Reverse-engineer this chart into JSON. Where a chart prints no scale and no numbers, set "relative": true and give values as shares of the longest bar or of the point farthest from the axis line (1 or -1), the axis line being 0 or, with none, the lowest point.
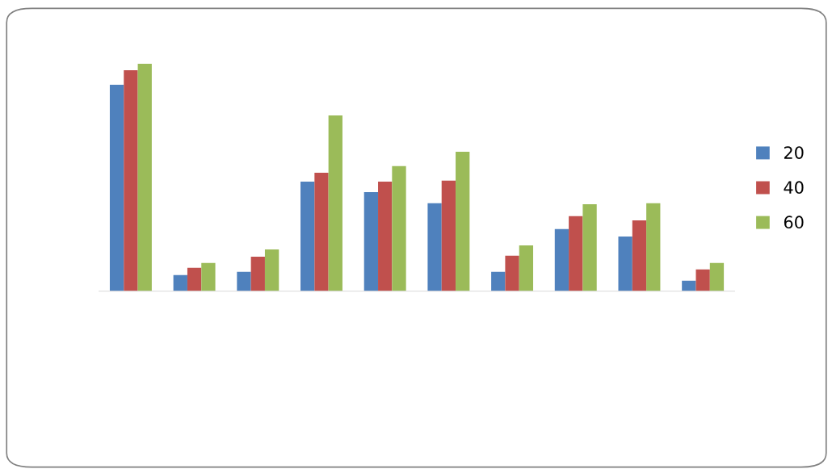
{
  "chart_data": {
    "type": "bar",
    "relative": true,
    "categories": [
      null,
      null,
      null,
      null,
      null,
      null,
      null,
      null,
      null,
      null
    ],
    "series": [
      {
        "name": "20",
        "color": "#4f81bd",
        "values": [
          0.908,
          0.071,
          0.085,
          0.482,
          0.436,
          0.387,
          0.085,
          0.273,
          0.241,
          0.046
        ]
      },
      {
        "name": "40",
        "color": "#c0504d",
        "values": [
          0.972,
          0.103,
          0.152,
          0.521,
          0.482,
          0.486,
          0.156,
          0.33,
          0.312,
          0.096
        ]
      },
      {
        "name": "60",
        "color": "#9bbb59",
        "values": [
          1,
          0.124,
          0.184,
          0.773,
          0.55,
          0.613,
          0.202,
          0.383,
          0.387,
          0.124
        ]
      }
    ],
    "legend": "right",
    "grid": false
  }
}
